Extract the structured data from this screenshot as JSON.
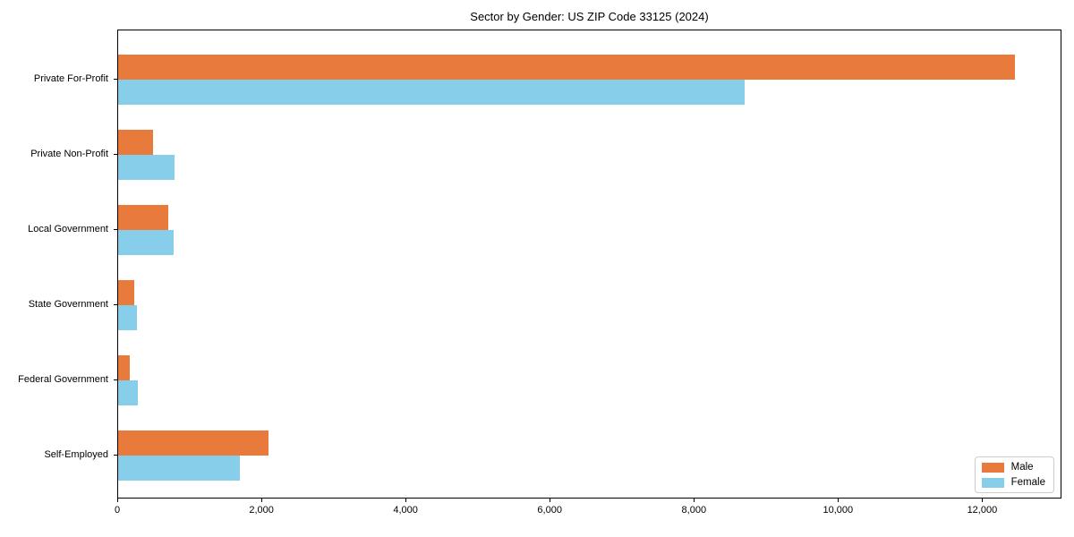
{
  "title": "Sector by Gender: US ZIP Code 33125 (2024)",
  "chart_data": {
    "type": "bar",
    "orientation": "horizontal",
    "title": "Sector by Gender: US ZIP Code 33125 (2024)",
    "categories": [
      "Private For-Profit",
      "Private Non-Profit",
      "Local Government",
      "State Government",
      "Federal Government",
      "Self-Employed"
    ],
    "series": [
      {
        "name": "Male",
        "color": "#e87a3c",
        "values": [
          12440,
          480,
          700,
          220,
          155,
          2085
        ]
      },
      {
        "name": "Female",
        "color": "#87ceeb",
        "values": [
          8690,
          780,
          770,
          255,
          270,
          1690
        ]
      }
    ],
    "xlim": [
      0,
      13100
    ],
    "x_ticks": [
      0,
      2000,
      4000,
      6000,
      8000,
      10000,
      12000
    ],
    "x_tick_labels": [
      "0",
      "2,000",
      "4,000",
      "6,000",
      "8,000",
      "10,000",
      "12,000"
    ],
    "xlabel": "",
    "ylabel": "",
    "grid": false,
    "legend": {
      "position": "lower right",
      "entries": [
        "Male",
        "Female"
      ]
    }
  }
}
